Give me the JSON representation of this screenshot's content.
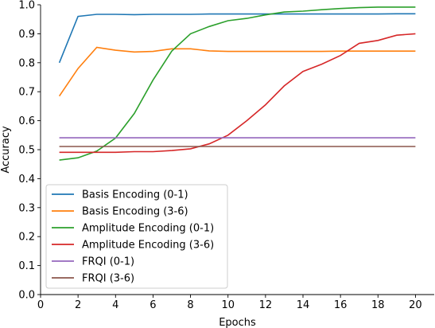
{
  "chart_data": {
    "type": "line",
    "xlabel": "Epochs",
    "ylabel": "Accuracy",
    "xlim": [
      0,
      21
    ],
    "ylim": [
      0.0,
      1.0
    ],
    "xticks": [
      0,
      2,
      4,
      6,
      8,
      10,
      12,
      14,
      16,
      18,
      20
    ],
    "yticks": [
      0.0,
      0.1,
      0.2,
      0.3,
      0.4,
      0.5,
      0.6,
      0.7,
      0.8,
      0.9,
      1.0
    ],
    "grid": false,
    "legend_position": "lower-left",
    "x": [
      1,
      2,
      3,
      4,
      5,
      6,
      7,
      8,
      9,
      10,
      11,
      12,
      13,
      14,
      15,
      16,
      17,
      18,
      19,
      20
    ],
    "series": [
      {
        "name": "Basis Encoding (0-1)",
        "color": "#1f77b4",
        "values": [
          0.8,
          0.96,
          0.967,
          0.967,
          0.966,
          0.967,
          0.967,
          0.967,
          0.968,
          0.968,
          0.968,
          0.968,
          0.968,
          0.968,
          0.968,
          0.968,
          0.968,
          0.968,
          0.969,
          0.969
        ]
      },
      {
        "name": "Basis Encoding (3-6)",
        "color": "#ff7f0e",
        "values": [
          0.685,
          0.78,
          0.853,
          0.843,
          0.837,
          0.839,
          0.848,
          0.848,
          0.841,
          0.839,
          0.839,
          0.839,
          0.839,
          0.839,
          0.839,
          0.84,
          0.84,
          0.84,
          0.84,
          0.84
        ]
      },
      {
        "name": "Amplitude Encoding (0-1)",
        "color": "#2ca02c",
        "values": [
          0.464,
          0.472,
          0.495,
          0.54,
          0.625,
          0.74,
          0.84,
          0.9,
          0.925,
          0.945,
          0.953,
          0.965,
          0.975,
          0.978,
          0.983,
          0.987,
          0.99,
          0.992,
          0.992,
          0.992
        ]
      },
      {
        "name": "Amplitude Encoding (3-6)",
        "color": "#d62728",
        "values": [
          0.491,
          0.491,
          0.491,
          0.491,
          0.493,
          0.493,
          0.497,
          0.503,
          0.52,
          0.55,
          0.6,
          0.655,
          0.72,
          0.77,
          0.795,
          0.825,
          0.867,
          0.877,
          0.895,
          0.9
        ]
      },
      {
        "name": "FRQI (0-1)",
        "color": "#9467bd",
        "values": [
          0.541,
          0.541,
          0.541,
          0.541,
          0.541,
          0.541,
          0.541,
          0.541,
          0.541,
          0.541,
          0.541,
          0.541,
          0.541,
          0.541,
          0.541,
          0.541,
          0.541,
          0.541,
          0.541,
          0.541
        ]
      },
      {
        "name": "FRQI (3-6)",
        "color": "#8c564b",
        "values": [
          0.511,
          0.511,
          0.511,
          0.511,
          0.511,
          0.511,
          0.511,
          0.511,
          0.511,
          0.511,
          0.511,
          0.511,
          0.511,
          0.511,
          0.511,
          0.511,
          0.511,
          0.511,
          0.511,
          0.511
        ]
      }
    ]
  }
}
